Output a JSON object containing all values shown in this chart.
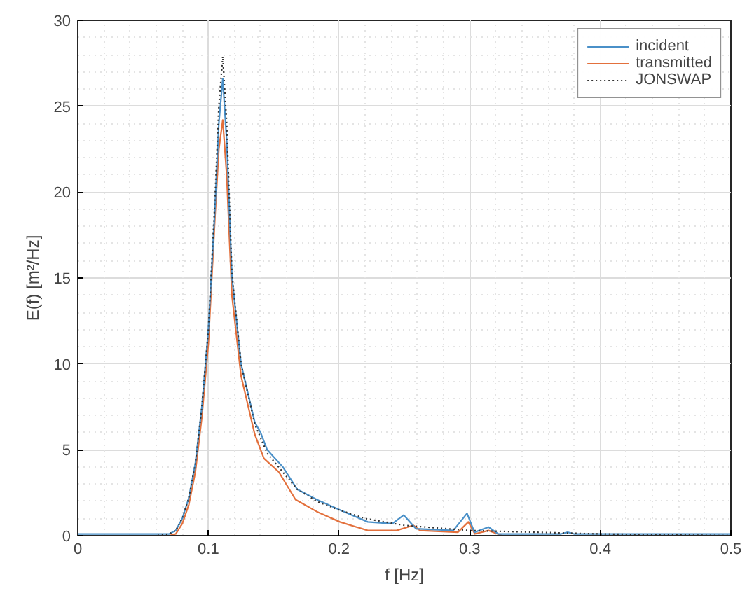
{
  "chart_data": {
    "type": "line",
    "xlabel": "f [Hz]",
    "ylabel": "E(f) [m²/Hz]",
    "xlim": [
      0,
      0.5
    ],
    "ylim": [
      0,
      30
    ],
    "xticks": [
      0,
      0.1,
      0.2,
      0.3,
      0.4,
      0.5
    ],
    "yticks": [
      0,
      5,
      10,
      15,
      20,
      25,
      30
    ],
    "grid": true,
    "legend": "top right",
    "marker": "none",
    "series": [
      {
        "name": "incident",
        "color": "#4a90c8",
        "line_style": "solid",
        "x": [
          0,
          0.06,
          0.07,
          0.075,
          0.08,
          0.085,
          0.09,
          0.095,
          0.1,
          0.105,
          0.108,
          0.111,
          0.114,
          0.118,
          0.125,
          0.1355,
          0.14,
          0.145,
          0.157,
          0.168,
          0.183,
          0.2007,
          0.222,
          0.2408,
          0.2495,
          0.259,
          0.2875,
          0.298,
          0.3037,
          0.3145,
          0.322,
          0.35,
          0.37,
          0.375,
          0.38,
          0.4,
          0.5
        ],
        "values": [
          0.1,
          0.1,
          0.1,
          0.3,
          1.0,
          2.2,
          4.2,
          7.5,
          12,
          19,
          24,
          26.6,
          23,
          15.1,
          10.0,
          6.6,
          6.0,
          5.0,
          4.0,
          2.7,
          2.1,
          1.5,
          0.8,
          0.7,
          1.2,
          0.4,
          0.3,
          1.3,
          0.2,
          0.5,
          0.1,
          0.1,
          0.1,
          0.2,
          0.1,
          0.1,
          0.1
        ]
      },
      {
        "name": "transmitted",
        "color": "#e3703c",
        "line_style": "solid",
        "x": [
          0,
          0.06,
          0.07,
          0.075,
          0.08,
          0.085,
          0.09,
          0.095,
          0.1,
          0.105,
          0.108,
          0.111,
          0.114,
          0.118,
          0.125,
          0.1355,
          0.1425,
          0.154,
          0.1667,
          0.183,
          0.2007,
          0.222,
          0.244,
          0.257,
          0.262,
          0.2911,
          0.299,
          0.304,
          0.3145,
          0.325,
          0.4,
          0.5
        ],
        "values": [
          0,
          0,
          0,
          0.1,
          0.7,
          1.8,
          3.7,
          6.9,
          11.2,
          18.5,
          22.5,
          24.2,
          21,
          14,
          9.3,
          5.9,
          4.5,
          3.7,
          2.1,
          1.4,
          0.8,
          0.3,
          0.3,
          0.6,
          0.3,
          0.2,
          0.8,
          0.1,
          0.3,
          0,
          0,
          0
        ]
      },
      {
        "name": "JONSWAP",
        "color": "#333333",
        "line_style": "dotted",
        "x": [
          0,
          0.06,
          0.07,
          0.075,
          0.08,
          0.085,
          0.09,
          0.095,
          0.1,
          0.105,
          0.108,
          0.111,
          0.114,
          0.118,
          0.125,
          0.1355,
          0.145,
          0.157,
          0.168,
          0.183,
          0.2,
          0.22,
          0.25,
          0.3,
          0.35,
          0.4,
          0.5
        ],
        "values": [
          0,
          0,
          0.1,
          0.3,
          1.0,
          2.2,
          4.2,
          7.5,
          12,
          19.5,
          25,
          27.9,
          24,
          15.3,
          10.0,
          6.5,
          4.8,
          3.7,
          2.7,
          2.0,
          1.5,
          1.0,
          0.6,
          0.3,
          0.2,
          0.1,
          0
        ]
      }
    ]
  }
}
